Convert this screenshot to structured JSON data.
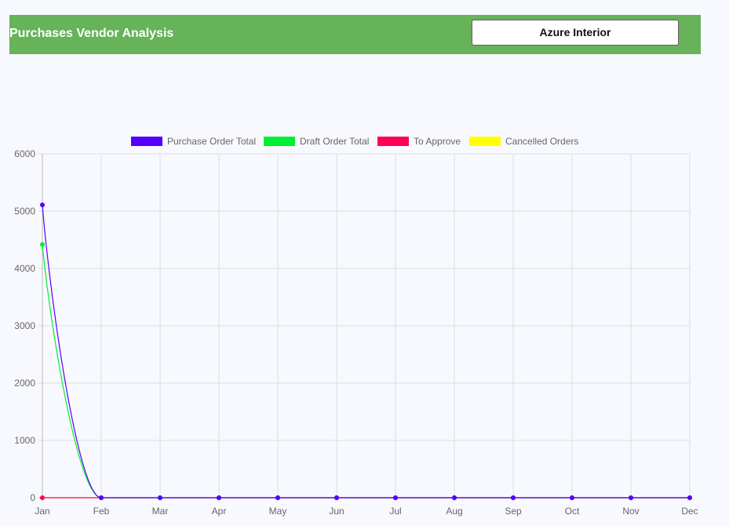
{
  "header": {
    "title": "Purchases Vendor Analysis",
    "vendor_select": "Azure Interior"
  },
  "chart_data": {
    "type": "line",
    "categories": [
      "Jan",
      "Feb",
      "Mar",
      "Apr",
      "May",
      "Jun",
      "Jul",
      "Aug",
      "Sep",
      "Oct",
      "Nov",
      "Dec"
    ],
    "ylim": [
      0,
      6000
    ],
    "yticks": [
      "0",
      "1000",
      "2000",
      "3000",
      "4000",
      "5000",
      "6000"
    ],
    "grid": true,
    "legend": "top",
    "series": [
      {
        "name": "Purchase Order Total",
        "color": "#5500ff",
        "values": [
          5110,
          0,
          0,
          0,
          0,
          0,
          0,
          0,
          0,
          0,
          0,
          0
        ]
      },
      {
        "name": "Draft Order Total",
        "color": "#00ee33",
        "values": [
          4420,
          0,
          0,
          0,
          0,
          0,
          0,
          0,
          0,
          0,
          0,
          0
        ]
      },
      {
        "name": "To Approve",
        "color": "#ff0055",
        "values": [
          0,
          0,
          0,
          0,
          0,
          0,
          0,
          0,
          0,
          0,
          0,
          0
        ]
      },
      {
        "name": "Cancelled Orders",
        "color": "#ffff00",
        "values": [
          0,
          0,
          0,
          0,
          0,
          0,
          0,
          0,
          0,
          0,
          0,
          0
        ]
      }
    ]
  }
}
